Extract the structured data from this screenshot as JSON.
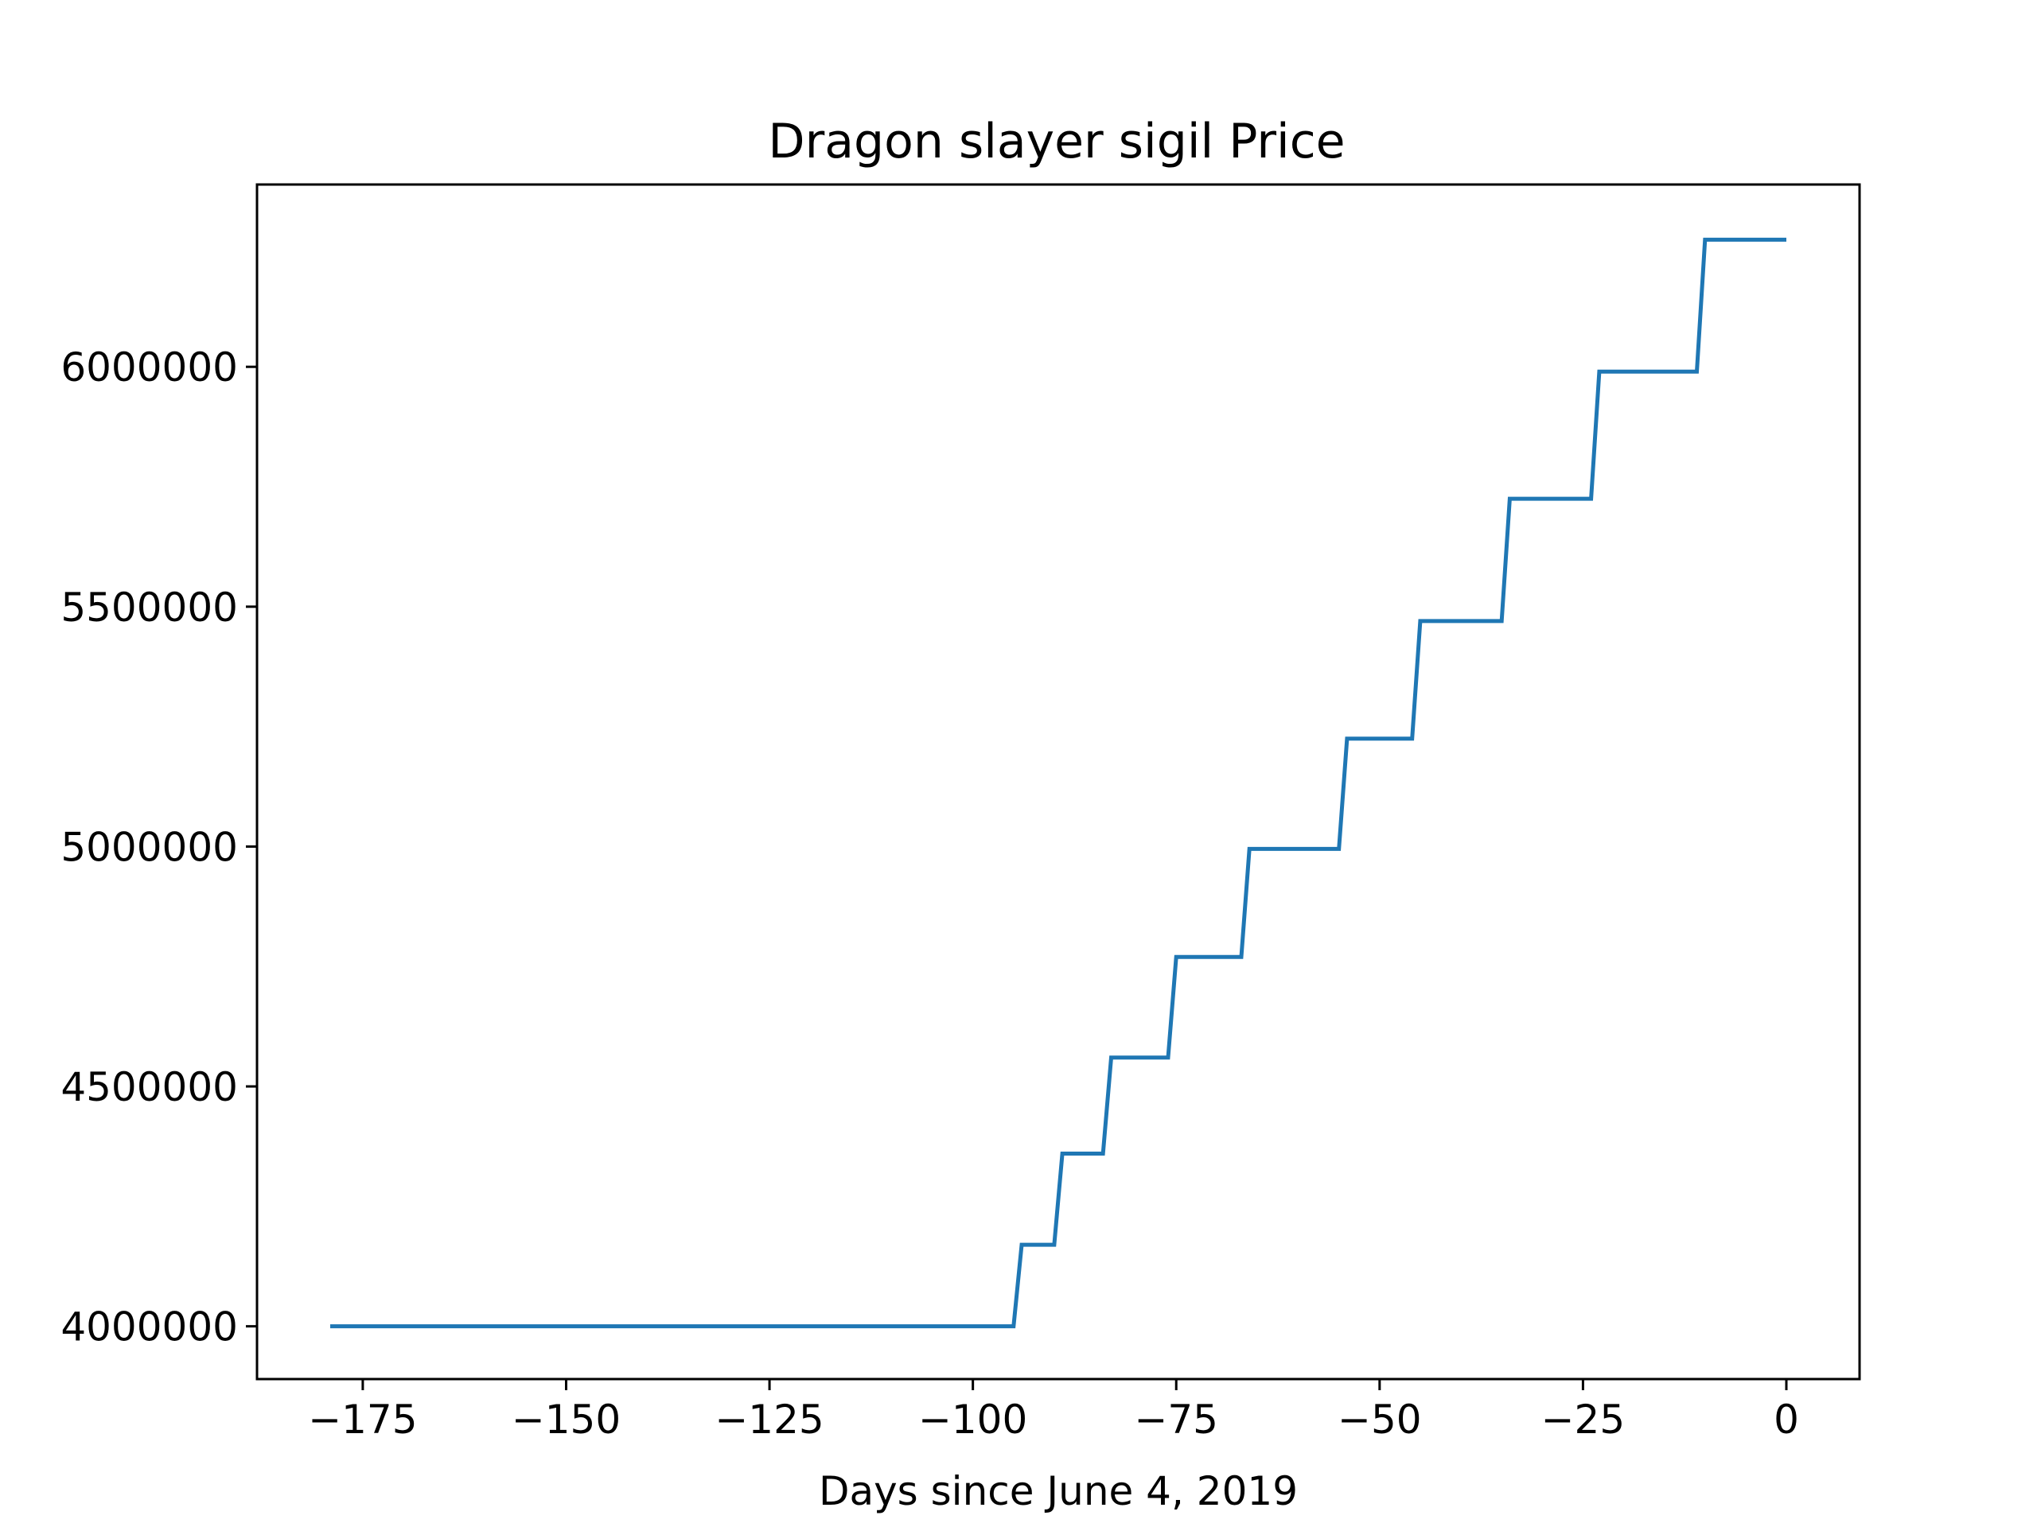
{
  "chart_data": {
    "type": "line",
    "title": "Dragon slayer sigil Price",
    "xlabel": "Days since June 4, 2019",
    "ylabel": "",
    "xlim": [
      -188,
      9
    ],
    "ylim": [
      3890000,
      6380000
    ],
    "xticks": [
      -175,
      -150,
      -125,
      -100,
      -75,
      -50,
      -25,
      0
    ],
    "xtick_labels": [
      "−175",
      "−150",
      "−125",
      "−100",
      "−75",
      "−50",
      "−25",
      "0"
    ],
    "yticks": [
      4000000,
      4500000,
      5000000,
      5500000,
      6000000
    ],
    "ytick_labels": [
      "4000000",
      "4500000",
      "5000000",
      "5500000",
      "6000000"
    ],
    "grid": false,
    "line_color": "#1f77b4",
    "series": [
      {
        "x": [
          -179,
          -95,
          -94,
          -90,
          -89,
          -84,
          -83,
          -76,
          -75,
          -67,
          -66,
          -55,
          -54,
          -46,
          -45,
          -35,
          -34,
          -24,
          -23,
          -11,
          -10,
          0
        ],
        "y": [
          4000000,
          4000000,
          4170000,
          4170000,
          4360000,
          4360000,
          4560000,
          4560000,
          4770000,
          4770000,
          4995000,
          4995000,
          5225000,
          5225000,
          5470000,
          5470000,
          5725000,
          5725000,
          5990000,
          5990000,
          6265000,
          6265000
        ]
      }
    ]
  }
}
